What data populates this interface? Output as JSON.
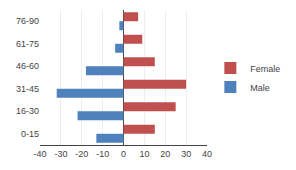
{
  "chart_data": {
    "type": "bar",
    "orientation": "horizontal",
    "categories": [
      "76-90",
      "61-75",
      "46-60",
      "31-45",
      "16-30",
      "0-15"
    ],
    "series": [
      {
        "name": "Female",
        "color": "#C0504D",
        "values": [
          7,
          9,
          15,
          30,
          25,
          15
        ]
      },
      {
        "name": "Male",
        "color": "#4F81BD",
        "values": [
          -2,
          -4,
          -18,
          -32,
          -22,
          -13
        ]
      }
    ],
    "xlim": [
      -40,
      40
    ],
    "xticks": [
      -40,
      -30,
      -20,
      -10,
      0,
      10,
      20,
      30,
      40
    ],
    "grid": true,
    "legend": "right"
  }
}
